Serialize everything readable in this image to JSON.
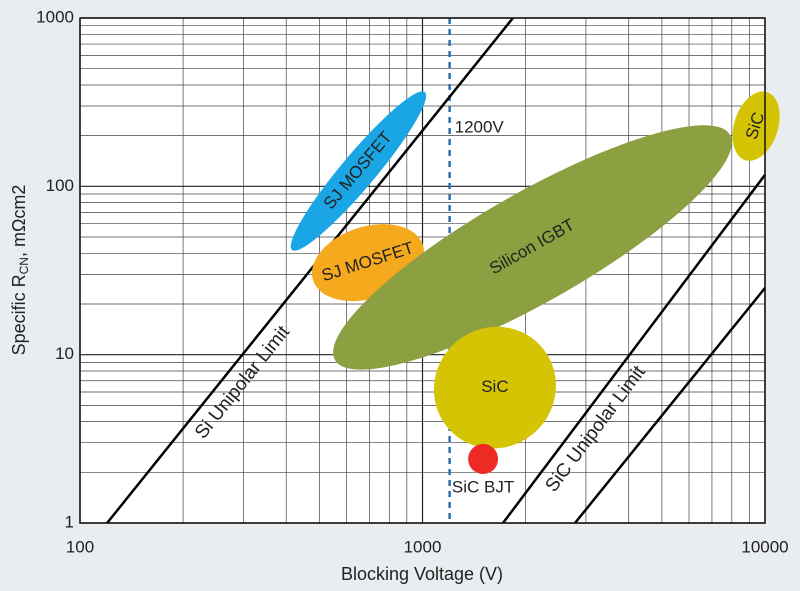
{
  "chart_data": {
    "type": "region",
    "xlabel": "Blocking Voltage (V)",
    "ylabel": {
      "main": "Specific R",
      "sub": "CN",
      "rest": ", mΩcm2"
    },
    "log_x": true,
    "log_y": true,
    "grid": true,
    "xlim": [
      100,
      10000
    ],
    "xticks": [
      100,
      1000,
      10000
    ],
    "ylim": [
      1,
      1000
    ],
    "yticks": [
      1,
      10,
      100,
      1000
    ],
    "regions": [
      {
        "name": "SJ MOSFET",
        "color": "#1aa6e4",
        "label_color": "#ffffff",
        "from": [
          416,
          41.9
        ],
        "to": [
          1016,
          363
        ],
        "width": 0.1
      },
      {
        "name": "SJ MOSFET",
        "color": "#f5a91d",
        "label_color": "#222222",
        "from": [
          479,
          27.7
        ],
        "to": [
          1003,
          44.8
        ],
        "width": 0.21
      },
      {
        "name": "Silicon IGBT",
        "color": "#8c9f41",
        "label_color": "#ffffff",
        "from": [
          555,
          9.3
        ],
        "to": [
          7906,
          202
        ],
        "width": 0.32
      },
      {
        "name": "SiC",
        "color": "#d5c403",
        "label_color": "#222222",
        "from": [
          8750,
          143
        ],
        "to": [
          10137,
          363
        ],
        "width": 0.128
      },
      {
        "name": "SiC",
        "color": "#d5c403",
        "label_color": "#222222",
        "from": [
          1202,
          3.56
        ],
        "to": [
          2203,
          11.4
        ],
        "width": 0.35
      }
    ],
    "lines": [
      {
        "name": "Si Unipolar Limit",
        "color": "#000000",
        "x": [
          120,
          1837
        ],
        "y": [
          1,
          1000
        ]
      },
      {
        "name": "SiC Unipolar Limit",
        "color": "#000000",
        "x": [
          1718,
          10000
        ],
        "y": [
          1,
          117
        ]
      },
      {
        "color": "#000000",
        "x": [
          2788,
          10000
        ],
        "y": [
          1,
          24.9
        ]
      }
    ],
    "points": [
      {
        "name": "SiC BJT",
        "color": "#ee2a24",
        "x": 1503,
        "y": 2.4
      }
    ],
    "reference_lines": [
      {
        "x": 1200,
        "label": "1200V",
        "color": "#2f6db3"
      }
    ]
  }
}
